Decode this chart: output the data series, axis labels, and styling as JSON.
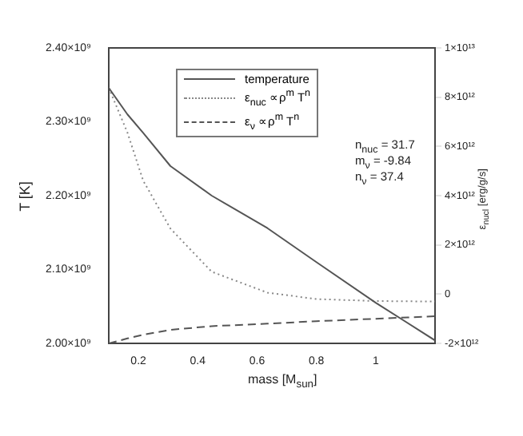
{
  "chart_data": {
    "type": "line",
    "xlabel": "mass [M$_{sun}$]",
    "ylabel": "T [K]",
    "y2label": "ε$_{nucl}$ [erg/g/s]",
    "x": [
      0.1,
      0.163,
      0.216,
      0.308,
      0.447,
      0.635,
      0.8,
      1.0,
      1.2
    ],
    "series": [
      {
        "name": "temperature",
        "color": "#555555",
        "line_style": "solid",
        "values": [
          2346000000.0,
          2310000000.0,
          2285000000.0,
          2240000000.0,
          2200000000.0,
          2156000000.0,
          2110000000.0,
          2055000000.0,
          2004000000.0
        ]
      },
      {
        "name": "ε$_{nuc}$ ∝ρ$^{m}$ T$^{n}$",
        "color": "#888888",
        "line_style": "dotted",
        "axis": "y2",
        "values": [
          8380000000000.0,
          6560000000000.0,
          4610000000000.0,
          2660000000000.0,
          910000000000.0,
          60000000000.0,
          -200000000000.0,
          -280000000000.0,
          -300000000000.0
        ]
      },
      {
        "name": "ε$_{ν}$ ∝ρ$^{m}$ T$^{n}$",
        "color": "#555555",
        "line_style": "dashed",
        "axis": "y2",
        "values": [
          -2000000000000.0,
          -1800000000000.0,
          -1650000000000.0,
          -1450000000000.0,
          -1300000000000.0,
          -1200000000000.0,
          -1100000000000.0,
          -1000000000000.0,
          -900000000000.0
        ]
      }
    ],
    "xlim": [
      0.1,
      1.2
    ],
    "xticks": [
      0.2,
      0.4,
      0.6,
      0.8,
      1.0
    ],
    "ylim": [
      2000000000.0,
      2400000000.0
    ],
    "yticks": [
      {
        "value": 2000000000.0,
        "label": "2.00×10⁹"
      },
      {
        "value": 2100000000.0,
        "label": "2.10×10⁹"
      },
      {
        "value": 2200000000.0,
        "label": "2.20×10⁹"
      },
      {
        "value": 2300000000.0,
        "label": "2.30×10⁹"
      },
      {
        "value": 2400000000.0,
        "label": "2.40×10⁹"
      }
    ],
    "y2lim": [
      -2000000000000.0,
      10000000000000.0
    ],
    "y2ticks": [
      {
        "value": -2000000000000.0,
        "label": "-2×10¹²"
      },
      {
        "value": 0,
        "label": "0"
      },
      {
        "value": 2000000000000.0,
        "label": "2×10¹²"
      },
      {
        "value": 4000000000000.0,
        "label": "4×10¹²"
      },
      {
        "value": 6000000000000.0,
        "label": "6×10¹²"
      },
      {
        "value": 8000000000000.0,
        "label": "8×10¹²"
      },
      {
        "value": 10000000000000.0,
        "label": "1×10¹³"
      }
    ],
    "grid": false,
    "legend": "top",
    "marker": "none",
    "annotations": [
      "n$_{nuc}$ = 31.7",
      "m$_{ν}$ = -9.84",
      "n$_{ν}$ = 37.4"
    ]
  }
}
